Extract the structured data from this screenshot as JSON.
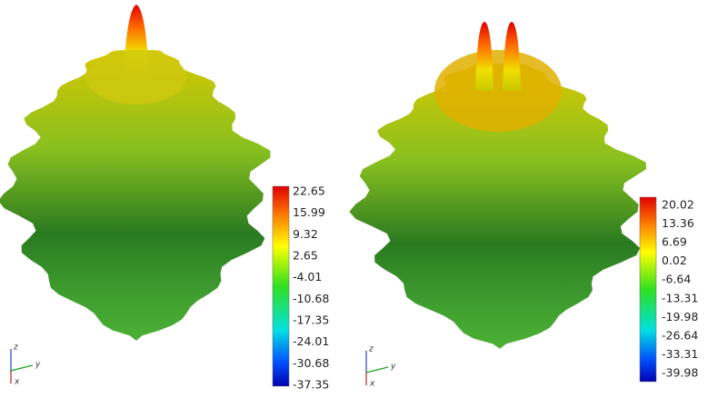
{
  "panels": [
    {
      "colorbar_labels": [
        "22.65",
        "15.99",
        "9.32",
        "2.65",
        "-4.01",
        "-10.68",
        "-17.35",
        "-24.01",
        "-30.68",
        "-37.35"
      ],
      "axes": [
        "z",
        "y",
        "x"
      ]
    },
    {
      "colorbar_labels": [
        "20.02",
        "13.36",
        "6.69",
        "0.02",
        "-6.64",
        "-13.31",
        "-19.98",
        "-26.64",
        "-33.31",
        "-39.98"
      ],
      "axes": [
        "z",
        "y",
        "x"
      ]
    }
  ]
}
